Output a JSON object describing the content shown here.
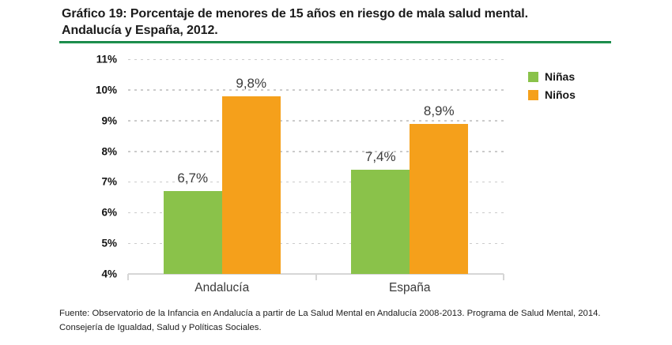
{
  "header": {
    "title_line1": "Gráfico 19: Porcentaje de menores de 15 años en riesgo de mala salud mental.",
    "title_line2": "Andalucía y España, 2012.",
    "rule_color": "#179b4e"
  },
  "chart_data": {
    "type": "bar",
    "title": "Gráfico 19: Porcentaje de menores de 15 años en riesgo de mala salud mental. Andalucía y España, 2012.",
    "categories": [
      "Andalucía",
      "España"
    ],
    "series": [
      {
        "name": "Niñas",
        "color": "#8ac24a",
        "values": [
          6.7,
          7.4
        ],
        "value_labels": [
          "6,7%",
          "7,4%"
        ]
      },
      {
        "name": "Niños",
        "color": "#f5a01b",
        "values": [
          9.8,
          8.9
        ],
        "value_labels": [
          "9,8%",
          "8,9%"
        ]
      }
    ],
    "ylim": [
      4,
      11
    ],
    "ytick_interval": 1,
    "ytick_labels": [
      "4%",
      "5%",
      "6%",
      "7%",
      "8%",
      "9%",
      "10%",
      "11%"
    ],
    "grid": "horizontal-dashed",
    "legend_position": "top-right"
  },
  "footer": {
    "source_text": "Fuente: Observatorio de la Infancia en Andalucía a partir de La Salud Mental en Andalucía 2008-2013. Programa de Salud Mental, 2014. Consejería de Igualdad, Salud y Políticas Sociales."
  }
}
